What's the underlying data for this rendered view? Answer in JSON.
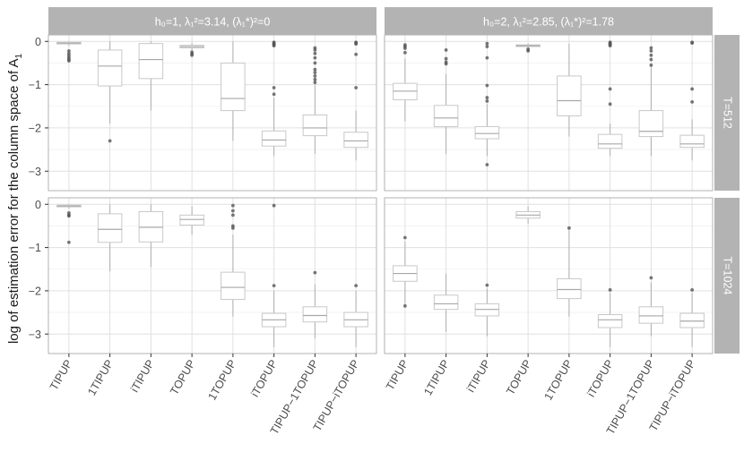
{
  "chart_data": {
    "type": "box",
    "ylabel": "log of estimation error for the column space of A",
    "ylabel_subscript": "1",
    "ylim": [
      -3.45,
      0.15
    ],
    "yticks": [
      0,
      -1,
      -2,
      -3
    ],
    "ytick_labels": [
      "0",
      "−1",
      "−2",
      "−3"
    ],
    "categories": [
      "TIPUP",
      "1TIPUP",
      "iTIPUP",
      "TOPUP",
      "1TOPUP",
      "iTOPUP",
      "TIPUP−1TOPUP",
      "TIPUP−iTOPUP"
    ],
    "columns": [
      {
        "label": "h₀=1, λ₁²=3.14, (λ₁*)²=0"
      },
      {
        "label": "h₀=2, λ₁²=2.85, (λ₁*)²=1.78"
      }
    ],
    "rows": [
      {
        "label": "T=512"
      },
      {
        "label": "T=1024"
      }
    ],
    "grid": true,
    "colors": {
      "strip": "#b3b3b3",
      "strip_text": "#ffffff",
      "grid": "#e0e0e0",
      "box_line": "#c8c8c8",
      "outlier": "#555555",
      "panel_border": "#a0a0a0"
    },
    "panels": [
      {
        "row": 0,
        "col": 0,
        "boxes": [
          {
            "min": -0.1,
            "q1": -0.06,
            "median": -0.04,
            "q3": -0.02,
            "max": 0.0,
            "outliers": [
              -0.22,
              -0.28,
              -0.33,
              -0.38,
              -0.42,
              -0.45
            ]
          },
          {
            "min": -1.9,
            "q1": -1.03,
            "median": -0.57,
            "q3": -0.2,
            "max": 0.0,
            "outliers": [
              -2.3
            ]
          },
          {
            "min": -1.6,
            "q1": -0.86,
            "median": -0.42,
            "q3": -0.05,
            "max": 0.0,
            "outliers": []
          },
          {
            "min": -0.22,
            "q1": -0.15,
            "median": -0.12,
            "q3": -0.09,
            "max": -0.03,
            "outliers": [
              -0.25,
              -0.29,
              -0.32
            ]
          },
          {
            "min": -2.3,
            "q1": -1.6,
            "median": -1.32,
            "q3": -0.5,
            "max": 0.0,
            "outliers": []
          },
          {
            "min": -2.65,
            "q1": -2.42,
            "median": -2.28,
            "q3": -2.07,
            "max": -1.3,
            "outliers": [
              -1.07,
              -1.22,
              -0.02,
              -0.04,
              -0.06,
              -0.08,
              -0.1
            ]
          },
          {
            "min": -2.6,
            "q1": -2.18,
            "median": -2.0,
            "q3": -1.7,
            "max": -1.0,
            "outliers": [
              -0.15,
              -0.2,
              -0.28,
              -0.38,
              -0.5,
              -0.65,
              -0.72,
              -0.8,
              -0.88,
              -0.95
            ]
          },
          {
            "min": -2.75,
            "q1": -2.45,
            "median": -2.3,
            "q3": -2.1,
            "max": -1.6,
            "outliers": [
              -1.07,
              -0.3,
              -0.02,
              -0.04,
              -0.06
            ]
          }
        ]
      },
      {
        "row": 0,
        "col": 1,
        "boxes": [
          {
            "min": -1.85,
            "q1": -1.35,
            "median": -1.15,
            "q3": -0.97,
            "max": -0.4,
            "outliers": [
              -0.08,
              -0.12,
              -0.16,
              -0.26
            ]
          },
          {
            "min": -2.6,
            "q1": -1.97,
            "median": -1.77,
            "q3": -1.48,
            "max": -0.75,
            "outliers": [
              -0.2,
              -0.4,
              -0.48,
              -0.52
            ]
          },
          {
            "min": -2.65,
            "q1": -2.25,
            "median": -2.13,
            "q3": -1.97,
            "max": -1.45,
            "outliers": [
              -1.02,
              -1.3,
              -1.38,
              -2.85,
              -0.05,
              -0.12,
              -0.38
            ]
          },
          {
            "min": -0.25,
            "q1": -0.12,
            "median": -0.1,
            "q3": -0.08,
            "max": -0.05,
            "outliers": [
              -0.18,
              -0.22
            ]
          },
          {
            "min": -2.2,
            "q1": -1.72,
            "median": -1.37,
            "q3": -0.8,
            "max": -0.05,
            "outliers": []
          },
          {
            "min": -2.65,
            "q1": -2.47,
            "median": -2.37,
            "q3": -2.15,
            "max": -1.9,
            "outliers": [
              -1.1,
              -1.45,
              -0.02,
              -0.04,
              -0.06,
              -0.08,
              -0.1
            ]
          },
          {
            "min": -2.65,
            "q1": -2.2,
            "median": -2.08,
            "q3": -1.6,
            "max": -0.6,
            "outliers": [
              -0.15,
              -0.22,
              -0.32,
              -0.42,
              -0.55
            ]
          },
          {
            "min": -2.75,
            "q1": -2.45,
            "median": -2.37,
            "q3": -2.17,
            "max": -1.8,
            "outliers": [
              -1.1,
              -1.4,
              -0.02,
              -0.04
            ]
          }
        ]
      },
      {
        "row": 1,
        "col": 0,
        "boxes": [
          {
            "min": -0.1,
            "q1": -0.06,
            "median": -0.04,
            "q3": -0.02,
            "max": 0.0,
            "outliers": [
              -0.2,
              -0.25,
              -0.27,
              -0.88
            ]
          },
          {
            "min": -1.55,
            "q1": -0.88,
            "median": -0.58,
            "q3": -0.22,
            "max": 0.0,
            "outliers": []
          },
          {
            "min": -1.45,
            "q1": -0.87,
            "median": -0.53,
            "q3": -0.17,
            "max": 0.0,
            "outliers": []
          },
          {
            "min": -0.7,
            "q1": -0.48,
            "median": -0.35,
            "q3": -0.25,
            "max": -0.05,
            "outliers": []
          },
          {
            "min": -2.6,
            "q1": -2.2,
            "median": -1.92,
            "q3": -1.57,
            "max": -0.7,
            "outliers": [
              -0.03,
              -0.15,
              -0.25,
              -0.5,
              -0.55
            ]
          },
          {
            "min": -3.3,
            "q1": -2.83,
            "median": -2.67,
            "q3": -2.52,
            "max": -2.0,
            "outliers": [
              -1.88,
              -0.03
            ]
          },
          {
            "min": -3.1,
            "q1": -2.72,
            "median": -2.57,
            "q3": -2.37,
            "max": -1.85,
            "outliers": [
              -1.58
            ]
          },
          {
            "min": -3.3,
            "q1": -2.83,
            "median": -2.67,
            "q3": -2.5,
            "max": -2.0,
            "outliers": [
              -1.88
            ]
          }
        ]
      },
      {
        "row": 1,
        "col": 1,
        "boxes": [
          {
            "min": -2.3,
            "q1": -1.78,
            "median": -1.6,
            "q3": -1.42,
            "max": -0.85,
            "outliers": [
              -0.77,
              -2.35
            ]
          },
          {
            "min": -2.95,
            "q1": -2.43,
            "median": -2.3,
            "q3": -2.1,
            "max": -1.6,
            "outliers": []
          },
          {
            "min": -3.05,
            "q1": -2.58,
            "median": -2.43,
            "q3": -2.3,
            "max": -1.95,
            "outliers": [
              -1.87
            ]
          },
          {
            "min": -0.45,
            "q1": -0.32,
            "median": -0.25,
            "q3": -0.17,
            "max": -0.05,
            "outliers": []
          },
          {
            "min": -2.6,
            "q1": -2.18,
            "median": -1.97,
            "q3": -1.72,
            "max": -0.6,
            "outliers": [
              -0.55
            ]
          },
          {
            "min": -3.3,
            "q1": -2.85,
            "median": -2.67,
            "q3": -2.55,
            "max": -2.05,
            "outliers": [
              -1.98
            ]
          },
          {
            "min": -3.05,
            "q1": -2.75,
            "median": -2.58,
            "q3": -2.37,
            "max": -1.8,
            "outliers": [
              -1.7
            ]
          },
          {
            "min": -3.3,
            "q1": -2.85,
            "median": -2.7,
            "q3": -2.52,
            "max": -2.05,
            "outliers": [
              -1.98
            ]
          }
        ]
      }
    ]
  }
}
